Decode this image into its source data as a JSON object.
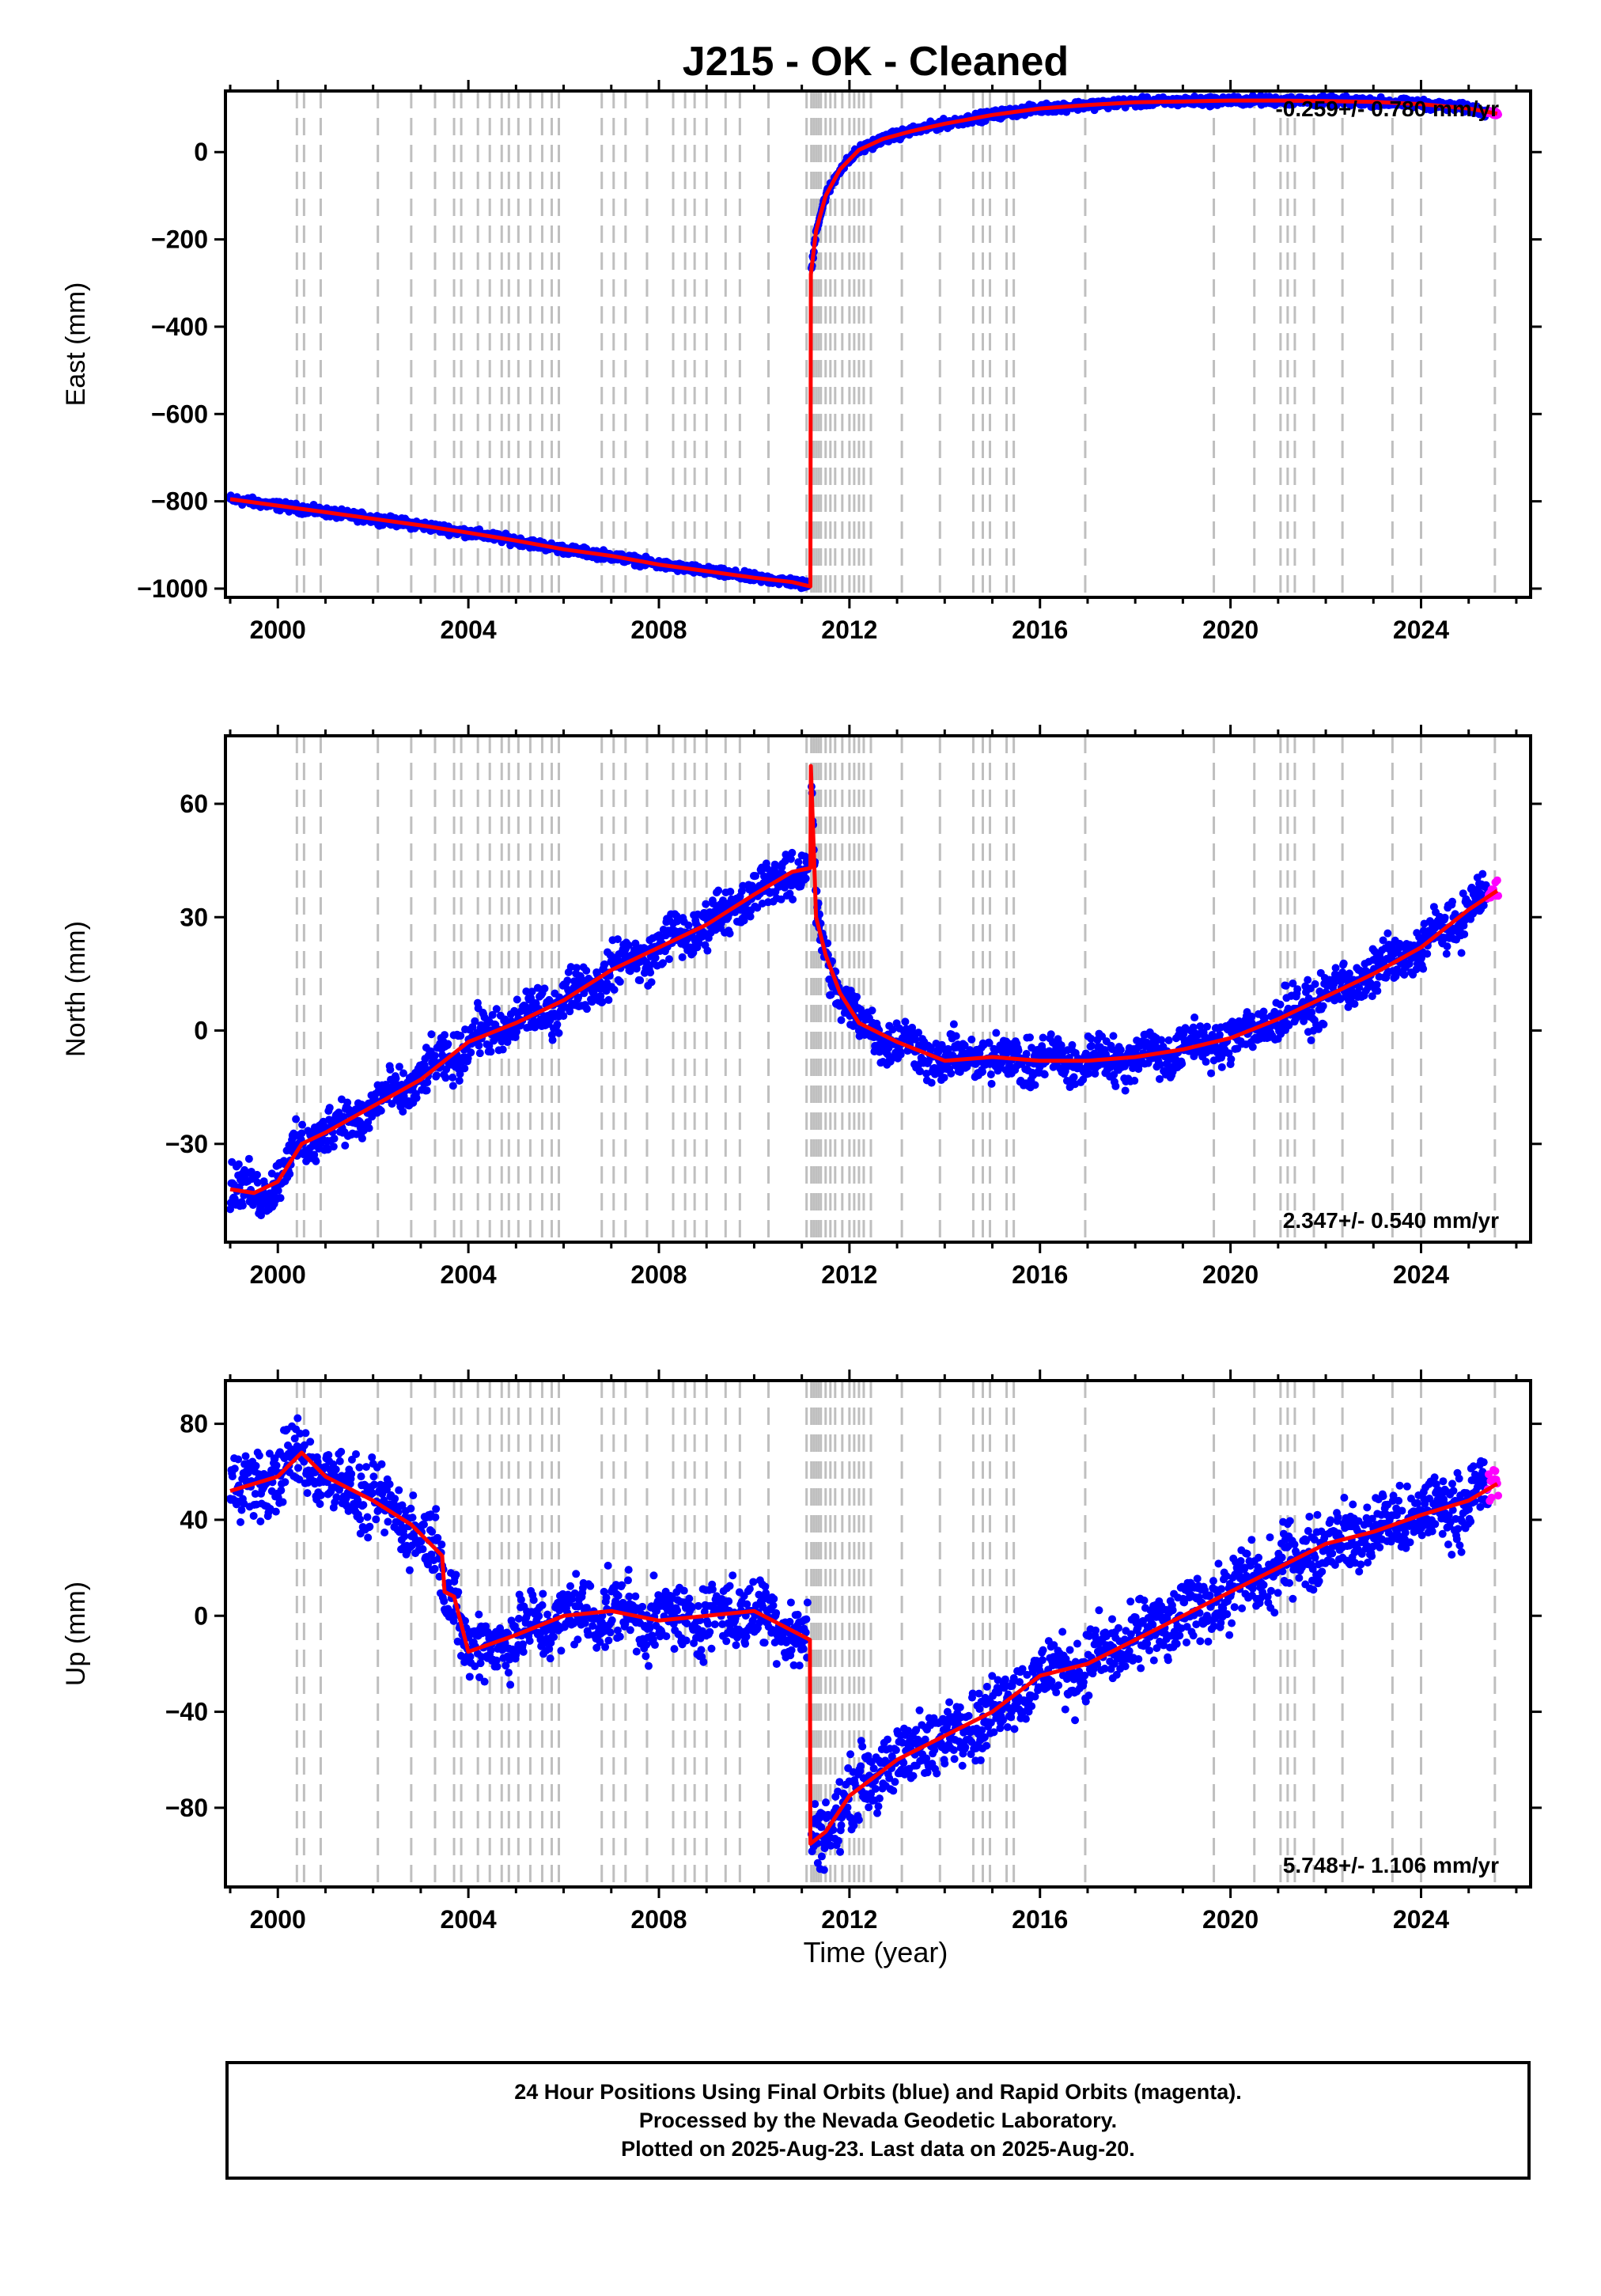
{
  "title": "J215  - OK - Cleaned",
  "x_axis_label": "Time (year)",
  "footer": {
    "line1": "24 Hour Positions Using Final Orbits (blue) and Rapid Orbits (magenta).",
    "line2": "Processed by the Nevada Geodetic Laboratory.",
    "line3": "Plotted on 2025-Aug-23. Last data on 2025-Aug-20."
  },
  "colors": {
    "final_orbits": "#0000ff",
    "rapid_orbits": "#ff00ff",
    "model": "#ff0000",
    "event_lines": "#bfbfbf"
  },
  "chart_data": [
    {
      "type": "scatter",
      "panel": "east",
      "ylabel": "East (mm)",
      "rate_label": "-0.259+/- 0.780 mm/yr",
      "rate_position": "top-right",
      "xlim": [
        1998.9,
        2026.3
      ],
      "ylim": [
        -1020,
        140
      ],
      "yticks": [
        -1000,
        -800,
        -600,
        -400,
        -200,
        0
      ],
      "xticks": [
        2000,
        2004,
        2008,
        2012,
        2016,
        2020,
        2024
      ],
      "model_series": {
        "name": "model",
        "x": [
          1999.0,
          2000.0,
          2001.0,
          2002.0,
          2003.0,
          2004.0,
          2005.0,
          2006.0,
          2007.0,
          2008.0,
          2009.0,
          2010.0,
          2010.8,
          2011.18,
          2011.19,
          2011.3,
          2011.5,
          2011.8,
          2012.2,
          2012.7,
          2013.3,
          2014.0,
          2015.0,
          2016.0,
          2017.0,
          2018.0,
          2019.0,
          2020.0,
          2021.0,
          2022.0,
          2023.0,
          2024.0,
          2025.0,
          2025.6
        ],
        "y": [
          -795,
          -810,
          -825,
          -840,
          -855,
          -872,
          -890,
          -910,
          -925,
          -945,
          -960,
          -975,
          -985,
          -995,
          -280,
          -180,
          -100,
          -40,
          5,
          30,
          48,
          65,
          85,
          100,
          108,
          114,
          116,
          118,
          118,
          117,
          115,
          110,
          100,
          88
        ]
      }
    },
    {
      "type": "scatter",
      "panel": "north",
      "ylabel": "North (mm)",
      "rate_label": "2.347+/- 0.540 mm/yr",
      "rate_position": "bottom-right",
      "xlim": [
        1998.9,
        2026.3
      ],
      "ylim": [
        -56,
        78
      ],
      "yticks": [
        -30,
        0,
        30,
        60
      ],
      "xticks": [
        2000,
        2004,
        2008,
        2012,
        2016,
        2020,
        2024
      ],
      "model_series": {
        "name": "model",
        "x": [
          1999.0,
          1999.5,
          2000.0,
          2000.5,
          2001.0,
          2002.0,
          2003.0,
          2004.0,
          2005.0,
          2006.0,
          2007.0,
          2008.0,
          2009.0,
          2010.0,
          2010.8,
          2011.18,
          2011.19,
          2011.3,
          2011.5,
          2011.8,
          2012.2,
          2013.0,
          2014.0,
          2015.0,
          2016.0,
          2017.0,
          2018.0,
          2019.0,
          2020.0,
          2021.0,
          2022.0,
          2023.0,
          2024.0,
          2025.0,
          2025.6
        ],
        "y": [
          -42,
          -43,
          -40,
          -30,
          -27,
          -20,
          -13,
          -3,
          2,
          8,
          16,
          22,
          28,
          36,
          42,
          43,
          70,
          30,
          20,
          10,
          2,
          -3,
          -8,
          -7,
          -8,
          -8,
          -7,
          -5,
          -2,
          3,
          9,
          15,
          22,
          32,
          37
        ]
      }
    },
    {
      "type": "scatter",
      "panel": "up",
      "ylabel": "Up (mm)",
      "rate_label": "5.748+/- 1.106 mm/yr",
      "rate_position": "bottom-right",
      "xlim": [
        1998.9,
        2026.3
      ],
      "ylim": [
        -113,
        98
      ],
      "yticks": [
        -80,
        -40,
        0,
        40,
        80
      ],
      "xticks": [
        2000,
        2004,
        2008,
        2012,
        2016,
        2020,
        2024
      ],
      "model_series": {
        "name": "model",
        "x": [
          1999.0,
          2000.0,
          2000.5,
          2001.0,
          2002.0,
          2002.8,
          2003.3,
          2003.45,
          2003.5,
          2003.7,
          2004.0,
          2005.0,
          2006.0,
          2007.0,
          2008.0,
          2009.0,
          2010.0,
          2011.17,
          2011.18,
          2011.5,
          2012.0,
          2013.0,
          2014.0,
          2015.0,
          2016.0,
          2017.0,
          2018.0,
          2019.0,
          2020.0,
          2021.0,
          2022.0,
          2023.0,
          2024.0,
          2025.0,
          2025.6
        ],
        "y": [
          52,
          58,
          68,
          58,
          48,
          38,
          28,
          25,
          10,
          8,
          -15,
          -8,
          0,
          2,
          -2,
          0,
          2,
          -10,
          -95,
          -90,
          -75,
          -60,
          -50,
          -40,
          -25,
          -20,
          -10,
          0,
          10,
          20,
          30,
          35,
          42,
          48,
          55
        ]
      }
    }
  ],
  "event_lines_years": [
    2000.4,
    2000.55,
    2000.9,
    2002.1,
    2002.8,
    2003.3,
    2003.7,
    2003.85,
    2004.2,
    2004.45,
    2004.7,
    2004.85,
    2005.05,
    2005.3,
    2005.55,
    2005.75,
    2005.9,
    2006.8,
    2007.05,
    2007.3,
    2007.75,
    2008.3,
    2008.55,
    2008.75,
    2009.0,
    2009.4,
    2009.7,
    2010.3,
    2011.1,
    2011.2,
    2011.25,
    2011.3,
    2011.35,
    2011.4,
    2011.5,
    2011.6,
    2011.7,
    2011.85,
    2012.0,
    2012.1,
    2012.2,
    2012.3,
    2012.45,
    2013.1,
    2013.9,
    2014.6,
    2014.8,
    2014.95,
    2015.3,
    2015.45,
    2016.95,
    2019.65,
    2020.5,
    2021.05,
    2021.2,
    2021.35,
    2021.75,
    2022.35,
    2023.4,
    2024.0,
    2025.55
  ]
}
